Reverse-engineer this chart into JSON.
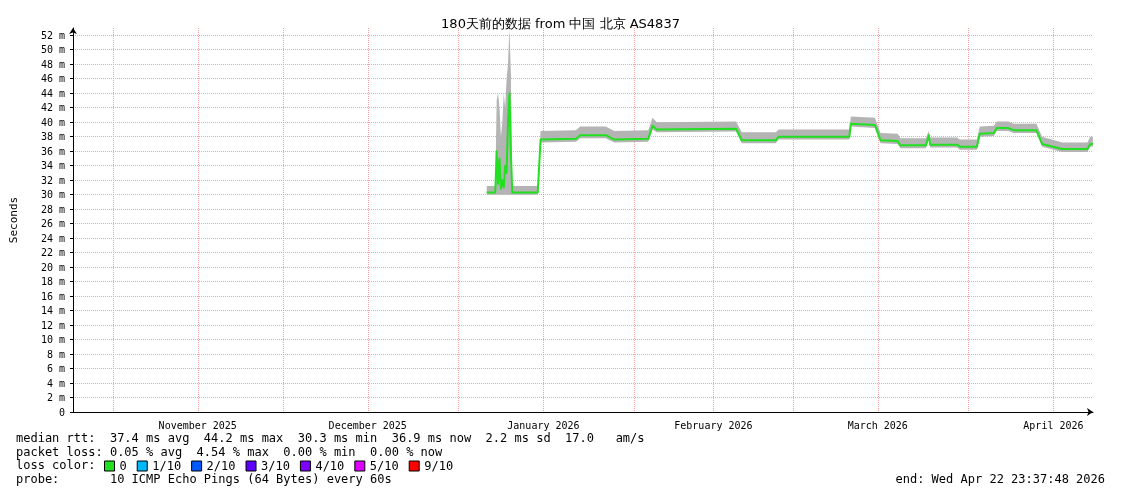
{
  "chart_data": {
    "type": "line",
    "title": "180天前的数据 from 中国 北京 AS4837",
    "ylabel": "Seconds",
    "legend_title": "loss color:",
    "xlim": [
      "2025-10-24T23:37",
      "2026-04-22T23:37"
    ],
    "xticks": [
      {
        "value": "2025-11-01",
        "label": null
      },
      {
        "value": "2025-11-16",
        "label": "November 2025"
      },
      {
        "value": "2025-12-01",
        "label": null
      },
      {
        "value": "2025-12-16",
        "label": "December 2025"
      },
      {
        "value": "2026-01-01",
        "label": null
      },
      {
        "value": "2026-01-16",
        "label": "January 2026"
      },
      {
        "value": "2026-02-01",
        "label": null
      },
      {
        "value": "2026-02-15",
        "label": "February 2026"
      },
      {
        "value": "2026-03-01",
        "label": null
      },
      {
        "value": "2026-03-16",
        "label": "March 2026"
      },
      {
        "value": "2026-04-01",
        "label": null
      },
      {
        "value": "2026-04-16",
        "label": "April 2026"
      }
    ],
    "ylim": [
      0,
      53
    ],
    "yticks": [
      0,
      {
        "value": 2,
        "label": "2 m"
      },
      {
        "value": 4,
        "label": "4 m"
      },
      {
        "value": 6,
        "label": "6 m"
      },
      {
        "value": 8,
        "label": "8 m"
      },
      {
        "value": 10,
        "label": "10 m"
      },
      {
        "value": 12,
        "label": "12 m"
      },
      {
        "value": 14,
        "label": "14 m"
      },
      {
        "value": 16,
        "label": "16 m"
      },
      {
        "value": 18,
        "label": "18 m"
      },
      {
        "value": 20,
        "label": "20 m"
      },
      {
        "value": 22,
        "label": "22 m"
      },
      {
        "value": 24,
        "label": "24 m"
      },
      {
        "value": 26,
        "label": "26 m"
      },
      {
        "value": 28,
        "label": "28 m"
      },
      {
        "value": 30,
        "label": "30 m"
      },
      {
        "value": 32,
        "label": "32 m"
      },
      {
        "value": 34,
        "label": "34 m"
      },
      {
        "value": 36,
        "label": "36 m"
      },
      {
        "value": 38,
        "label": "38 m"
      },
      {
        "value": 40,
        "label": "40 m"
      },
      {
        "value": 42,
        "label": "42 m"
      },
      {
        "value": 44,
        "label": "44 m"
      },
      {
        "value": 46,
        "label": "46 m"
      },
      {
        "value": 48,
        "label": "48 m"
      },
      {
        "value": 50,
        "label": "50 m"
      },
      {
        "value": 52,
        "label": "52 m"
      }
    ],
    "grid": true,
    "legend": "bottom left",
    "marker": "none",
    "line_style": "solid",
    "series": [
      {
        "name": "0",
        "color": "#20e020",
        "x": [
          "2026-01-06T00:00",
          "2026-01-07T12:00",
          "2026-01-07T18:00",
          "2026-01-08T00:00",
          "2026-01-08T06:00",
          "2026-01-08T12:00",
          "2026-01-08T18:00",
          "2026-01-09T00:00",
          "2026-01-09T06:00",
          "2026-01-09T12:00",
          "2026-01-09T18:00",
          "2026-01-10T00:00",
          "2026-01-10T06:00",
          "2026-01-10T12:00",
          "2026-01-15T00:00",
          "2026-01-15T12:00",
          "2026-01-21T18:00",
          "2026-01-22T12:00",
          "2026-01-27T00:00",
          "2026-01-28T12:00",
          "2026-02-03T12:00",
          "2026-02-04T06:00",
          "2026-02-05T00:00",
          "2026-02-19T00:00",
          "2026-02-20T00:00",
          "2026-02-26T00:00",
          "2026-02-26T12:00",
          "2026-03-09T00:00",
          "2026-03-11T00:00",
          "2026-03-11T06:00",
          "2026-03-15T12:00",
          "2026-03-16T12:00",
          "2026-03-19T12:00",
          "2026-03-20T00:00",
          "2026-03-24T12:00",
          "2026-03-25T00:00",
          "2026-03-25T06:00",
          "2026-03-30T00:00",
          "2026-03-30T12:00",
          "2026-04-02T12:00",
          "2026-04-03T00:00",
          "2026-04-05T12:00",
          "2026-04-06T00:00",
          "2026-04-08T00:00",
          "2026-04-09T00:00",
          "2026-04-13T00:00",
          "2026-04-14T00:00",
          "2026-04-17T12:00",
          "2026-04-22T00:00",
          "2026-04-22T12:00",
          "2026-04-22T23:00"
        ],
        "values": [
          30.3,
          30.3,
          36.0,
          31.5,
          35.0,
          30.8,
          32.0,
          31.0,
          34.0,
          33.0,
          40.0,
          44.0,
          36.0,
          30.3,
          30.3,
          37.6,
          37.7,
          38.2,
          38.2,
          37.6,
          37.7,
          39.5,
          39.0,
          39.1,
          37.5,
          37.5,
          38.0,
          38.0,
          38.0,
          39.8,
          39.6,
          37.5,
          37.4,
          36.8,
          36.8,
          38.2,
          36.9,
          36.9,
          36.6,
          36.6,
          38.4,
          38.5,
          39.2,
          39.2,
          38.9,
          38.9,
          37.0,
          36.3,
          36.3,
          37.0,
          37.0
        ],
        "lower": [
          30.0,
          30.0,
          30.0,
          30.0,
          30.0,
          30.0,
          30.0,
          30.0,
          30.0,
          30.0,
          30.0,
          30.0,
          30.0,
          30.0,
          30.0,
          37.2,
          37.3,
          37.8,
          37.8,
          37.2,
          37.3,
          39.0,
          38.6,
          38.7,
          37.1,
          37.1,
          37.6,
          37.6,
          37.6,
          39.4,
          39.2,
          37.1,
          37.0,
          36.4,
          36.4,
          37.6,
          36.5,
          36.5,
          36.2,
          36.2,
          38.0,
          38.1,
          38.8,
          38.8,
          38.5,
          38.5,
          36.6,
          35.9,
          35.9,
          36.6,
          36.6
        ],
        "upper": [
          31.2,
          31.2,
          43.0,
          44.0,
          42.0,
          38.0,
          40.0,
          44.0,
          42.0,
          46.0,
          48.0,
          53.0,
          47.0,
          31.2,
          31.2,
          38.8,
          38.9,
          39.4,
          39.4,
          38.8,
          38.9,
          40.6,
          40.0,
          40.1,
          38.6,
          38.6,
          39.0,
          39.0,
          39.0,
          40.8,
          40.6,
          38.5,
          38.4,
          37.8,
          37.8,
          38.8,
          37.9,
          37.9,
          37.6,
          37.6,
          39.4,
          39.5,
          40.1,
          40.1,
          39.8,
          39.8,
          38.0,
          37.2,
          37.2,
          38.0,
          38.0
        ]
      },
      {
        "name": "1/10",
        "color": "#00b8ff"
      },
      {
        "name": "2/10",
        "color": "#0059ff"
      },
      {
        "name": "3/10",
        "color": "#5e00ff"
      },
      {
        "name": "4/10",
        "color": "#7e00ff"
      },
      {
        "name": "5/10",
        "color": "#dd00ff"
      },
      {
        "name": "9/10",
        "color": "#ff0000"
      }
    ],
    "annotations": [
      "median rtt:  37.4 ms avg  44.2 ms max  30.3 ms min  36.9 ms now  2.2 ms sd  17.0   am/s",
      "packet loss: 0.05 % avg  4.54 % max  0.00 % min  0.00 % now",
      "probe:       10 ICMP Echo Pings (64 Bytes) every 60s",
      "end: Wed Apr 22 23:37:48 2026"
    ]
  }
}
